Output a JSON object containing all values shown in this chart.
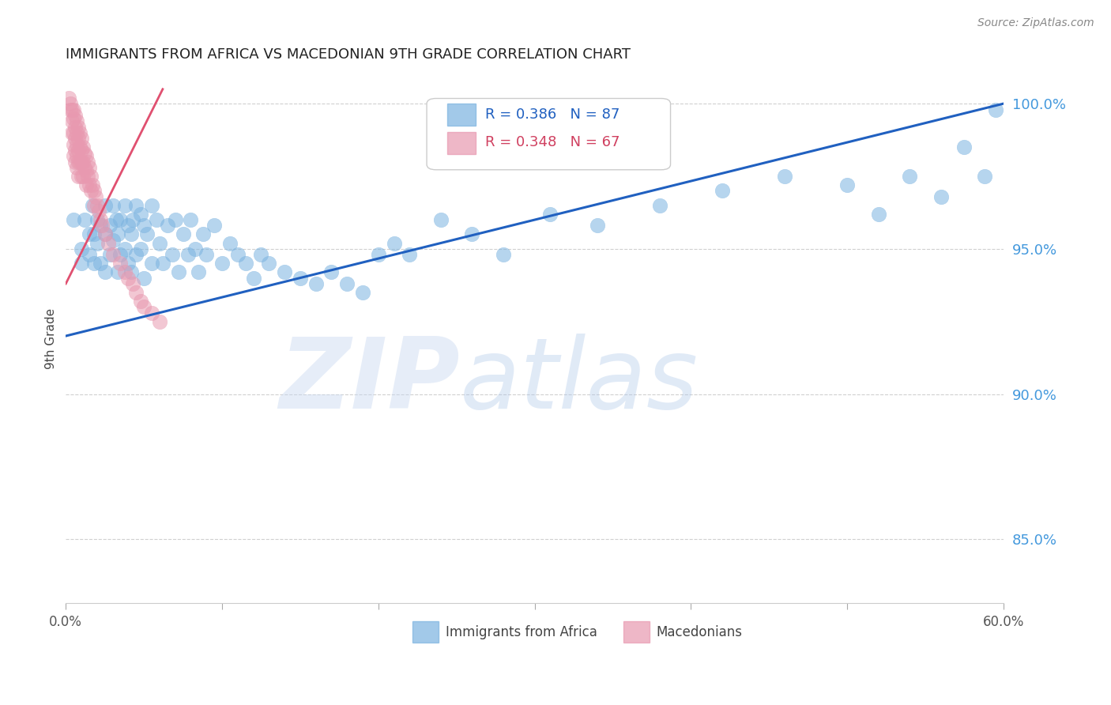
{
  "title": "IMMIGRANTS FROM AFRICA VS MACEDONIAN 9TH GRADE CORRELATION CHART",
  "source": "Source: ZipAtlas.com",
  "ylabel": "9th Grade",
  "xlim": [
    0.0,
    0.6
  ],
  "ylim": [
    0.828,
    1.01
  ],
  "y_ticks": [
    0.85,
    0.9,
    0.95,
    1.0
  ],
  "y_tick_labels": [
    "85.0%",
    "90.0%",
    "95.0%",
    "100.0%"
  ],
  "blue_R": 0.386,
  "blue_N": 87,
  "pink_R": 0.348,
  "pink_N": 67,
  "blue_color": "#7BB3E0",
  "pink_color": "#E899B0",
  "blue_line_color": "#2060C0",
  "pink_line_color": "#E05070",
  "legend_label_blue": "Immigrants from Africa",
  "legend_label_pink": "Macedonians",
  "blue_scatter_x": [
    0.005,
    0.01,
    0.01,
    0.012,
    0.015,
    0.015,
    0.017,
    0.018,
    0.018,
    0.02,
    0.02,
    0.022,
    0.022,
    0.025,
    0.025,
    0.025,
    0.028,
    0.028,
    0.03,
    0.03,
    0.032,
    0.033,
    0.033,
    0.035,
    0.035,
    0.038,
    0.038,
    0.04,
    0.04,
    0.042,
    0.042,
    0.043,
    0.045,
    0.045,
    0.048,
    0.048,
    0.05,
    0.05,
    0.052,
    0.055,
    0.055,
    0.058,
    0.06,
    0.062,
    0.065,
    0.068,
    0.07,
    0.072,
    0.075,
    0.078,
    0.08,
    0.083,
    0.085,
    0.088,
    0.09,
    0.095,
    0.1,
    0.105,
    0.11,
    0.115,
    0.12,
    0.125,
    0.13,
    0.14,
    0.15,
    0.16,
    0.17,
    0.18,
    0.19,
    0.2,
    0.21,
    0.22,
    0.24,
    0.26,
    0.28,
    0.31,
    0.34,
    0.38,
    0.42,
    0.46,
    0.5,
    0.52,
    0.54,
    0.56,
    0.575,
    0.588,
    0.595
  ],
  "blue_scatter_y": [
    0.96,
    0.95,
    0.945,
    0.96,
    0.955,
    0.948,
    0.965,
    0.955,
    0.945,
    0.96,
    0.952,
    0.958,
    0.945,
    0.965,
    0.955,
    0.942,
    0.958,
    0.948,
    0.965,
    0.953,
    0.96,
    0.955,
    0.942,
    0.96,
    0.948,
    0.965,
    0.95,
    0.958,
    0.945,
    0.955,
    0.942,
    0.96,
    0.965,
    0.948,
    0.962,
    0.95,
    0.958,
    0.94,
    0.955,
    0.965,
    0.945,
    0.96,
    0.952,
    0.945,
    0.958,
    0.948,
    0.96,
    0.942,
    0.955,
    0.948,
    0.96,
    0.95,
    0.942,
    0.955,
    0.948,
    0.958,
    0.945,
    0.952,
    0.948,
    0.945,
    0.94,
    0.948,
    0.945,
    0.942,
    0.94,
    0.938,
    0.942,
    0.938,
    0.935,
    0.948,
    0.952,
    0.948,
    0.96,
    0.955,
    0.948,
    0.962,
    0.958,
    0.965,
    0.97,
    0.975,
    0.972,
    0.962,
    0.975,
    0.968,
    0.985,
    0.975,
    0.998
  ],
  "pink_scatter_x": [
    0.002,
    0.003,
    0.003,
    0.004,
    0.004,
    0.004,
    0.005,
    0.005,
    0.005,
    0.005,
    0.005,
    0.006,
    0.006,
    0.006,
    0.006,
    0.006,
    0.007,
    0.007,
    0.007,
    0.007,
    0.007,
    0.008,
    0.008,
    0.008,
    0.008,
    0.008,
    0.009,
    0.009,
    0.009,
    0.01,
    0.01,
    0.01,
    0.01,
    0.011,
    0.011,
    0.011,
    0.012,
    0.012,
    0.013,
    0.013,
    0.013,
    0.014,
    0.014,
    0.015,
    0.015,
    0.016,
    0.016,
    0.017,
    0.018,
    0.018,
    0.019,
    0.02,
    0.021,
    0.022,
    0.023,
    0.025,
    0.027,
    0.03,
    0.035,
    0.038,
    0.04,
    0.043,
    0.045,
    0.048,
    0.05,
    0.055,
    0.06
  ],
  "pink_scatter_y": [
    1.002,
    1.0,
    0.998,
    0.998,
    0.994,
    0.99,
    0.998,
    0.995,
    0.99,
    0.986,
    0.982,
    0.996,
    0.992,
    0.988,
    0.984,
    0.98,
    0.994,
    0.99,
    0.986,
    0.982,
    0.978,
    0.992,
    0.988,
    0.984,
    0.98,
    0.975,
    0.99,
    0.985,
    0.98,
    0.988,
    0.984,
    0.98,
    0.975,
    0.985,
    0.98,
    0.975,
    0.983,
    0.978,
    0.982,
    0.977,
    0.972,
    0.98,
    0.975,
    0.978,
    0.972,
    0.975,
    0.97,
    0.972,
    0.97,
    0.965,
    0.968,
    0.965,
    0.963,
    0.96,
    0.958,
    0.955,
    0.952,
    0.948,
    0.945,
    0.942,
    0.94,
    0.938,
    0.935,
    0.932,
    0.93,
    0.928,
    0.925
  ],
  "blue_trend_x": [
    0.0,
    0.6
  ],
  "blue_trend_y": [
    0.92,
    1.0
  ],
  "pink_trend_x": [
    0.0,
    0.062
  ],
  "pink_trend_y": [
    0.938,
    1.005
  ],
  "watermark_zip": "ZIP",
  "watermark_atlas": "atlas",
  "background_color": "#ffffff",
  "grid_color": "#d0d0d0"
}
